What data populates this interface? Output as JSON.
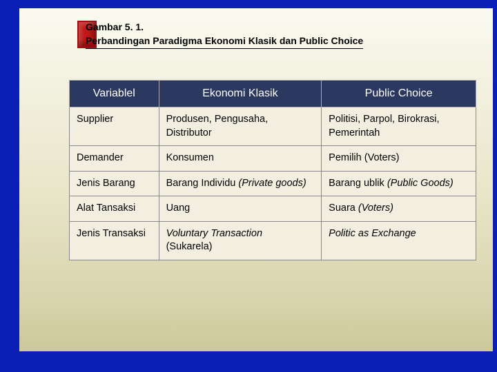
{
  "title": {
    "line1": "Gambar 5. 1.",
    "line2": "Perbandingan Paradigma Ekonomi Klasik dan Public Choice"
  },
  "table": {
    "header_bg": "#2b3860",
    "header_fg": "#ffffff",
    "cell_bg": "#f2efe0",
    "border_color": "#888888",
    "columns": [
      {
        "label": "Variablel",
        "width": "22%"
      },
      {
        "label": "Ekonomi Klasik",
        "width": "40%"
      },
      {
        "label": "Public Choice",
        "width": "38%"
      }
    ],
    "rows": [
      {
        "c0": "Supplier",
        "c1": "Produsen, Pengusaha, Distributor",
        "c2": "Politisi, Parpol, Birokrasi, Pemerintah"
      },
      {
        "c0": "Demander",
        "c1": "Konsumen",
        "c2": "Pemilih (Voters)"
      },
      {
        "c0": "Jenis Barang",
        "c1_plain": "Barang Individu ",
        "c1_italic": "(Private goods)",
        "c2_plain": "Barang ublik ",
        "c2_italic": "(Public Goods)"
      },
      {
        "c0": "Alat Tansaksi",
        "c1": "Uang",
        "c2_plain": "Suara ",
        "c2_italic": "(Voters)"
      },
      {
        "c0": "Jenis Transaksi",
        "c1_italic": "Voluntary Transaction",
        "c1_plain2": "(Sukarela)",
        "c2_italic": "Politic as Exchange"
      }
    ]
  }
}
